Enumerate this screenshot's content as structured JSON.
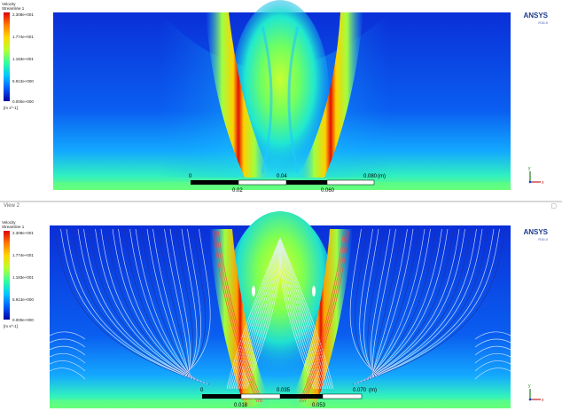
{
  "top_view": {
    "legend": {
      "title": "Velocity\nStreamline 1",
      "labels": [
        "2.308e+001",
        "1.774e+001",
        "1.183e+001",
        "5.913e+000",
        "0.000e+000"
      ],
      "unit": "[m s^-1]"
    },
    "logo": {
      "name": "ANSYS",
      "sub": "R16.0"
    },
    "scale": {
      "ticks": [
        "0",
        "0.04",
        "0.080",
        "(m)"
      ],
      "minor": [
        "0.02",
        "0.060"
      ]
    }
  },
  "bottom_view": {
    "view_label": "View 2",
    "legend": {
      "title": "Velocity\nStreamline 1",
      "labels": [
        "2.308e+001",
        "1.774e+001",
        "1.183e+001",
        "5.913e+000",
        "0.000e+000"
      ],
      "unit": "[m s^-1]"
    },
    "logo": {
      "name": "ANSYS",
      "sub": "R16.0"
    },
    "scale": {
      "ticks": [
        "0",
        "0.035",
        "0.070",
        "(m)"
      ],
      "minor": [
        "0.018",
        "0.053"
      ]
    }
  },
  "colors": {
    "field_low": "#0000a0",
    "field_mid": "#30ff90",
    "field_high": "#e00000"
  }
}
